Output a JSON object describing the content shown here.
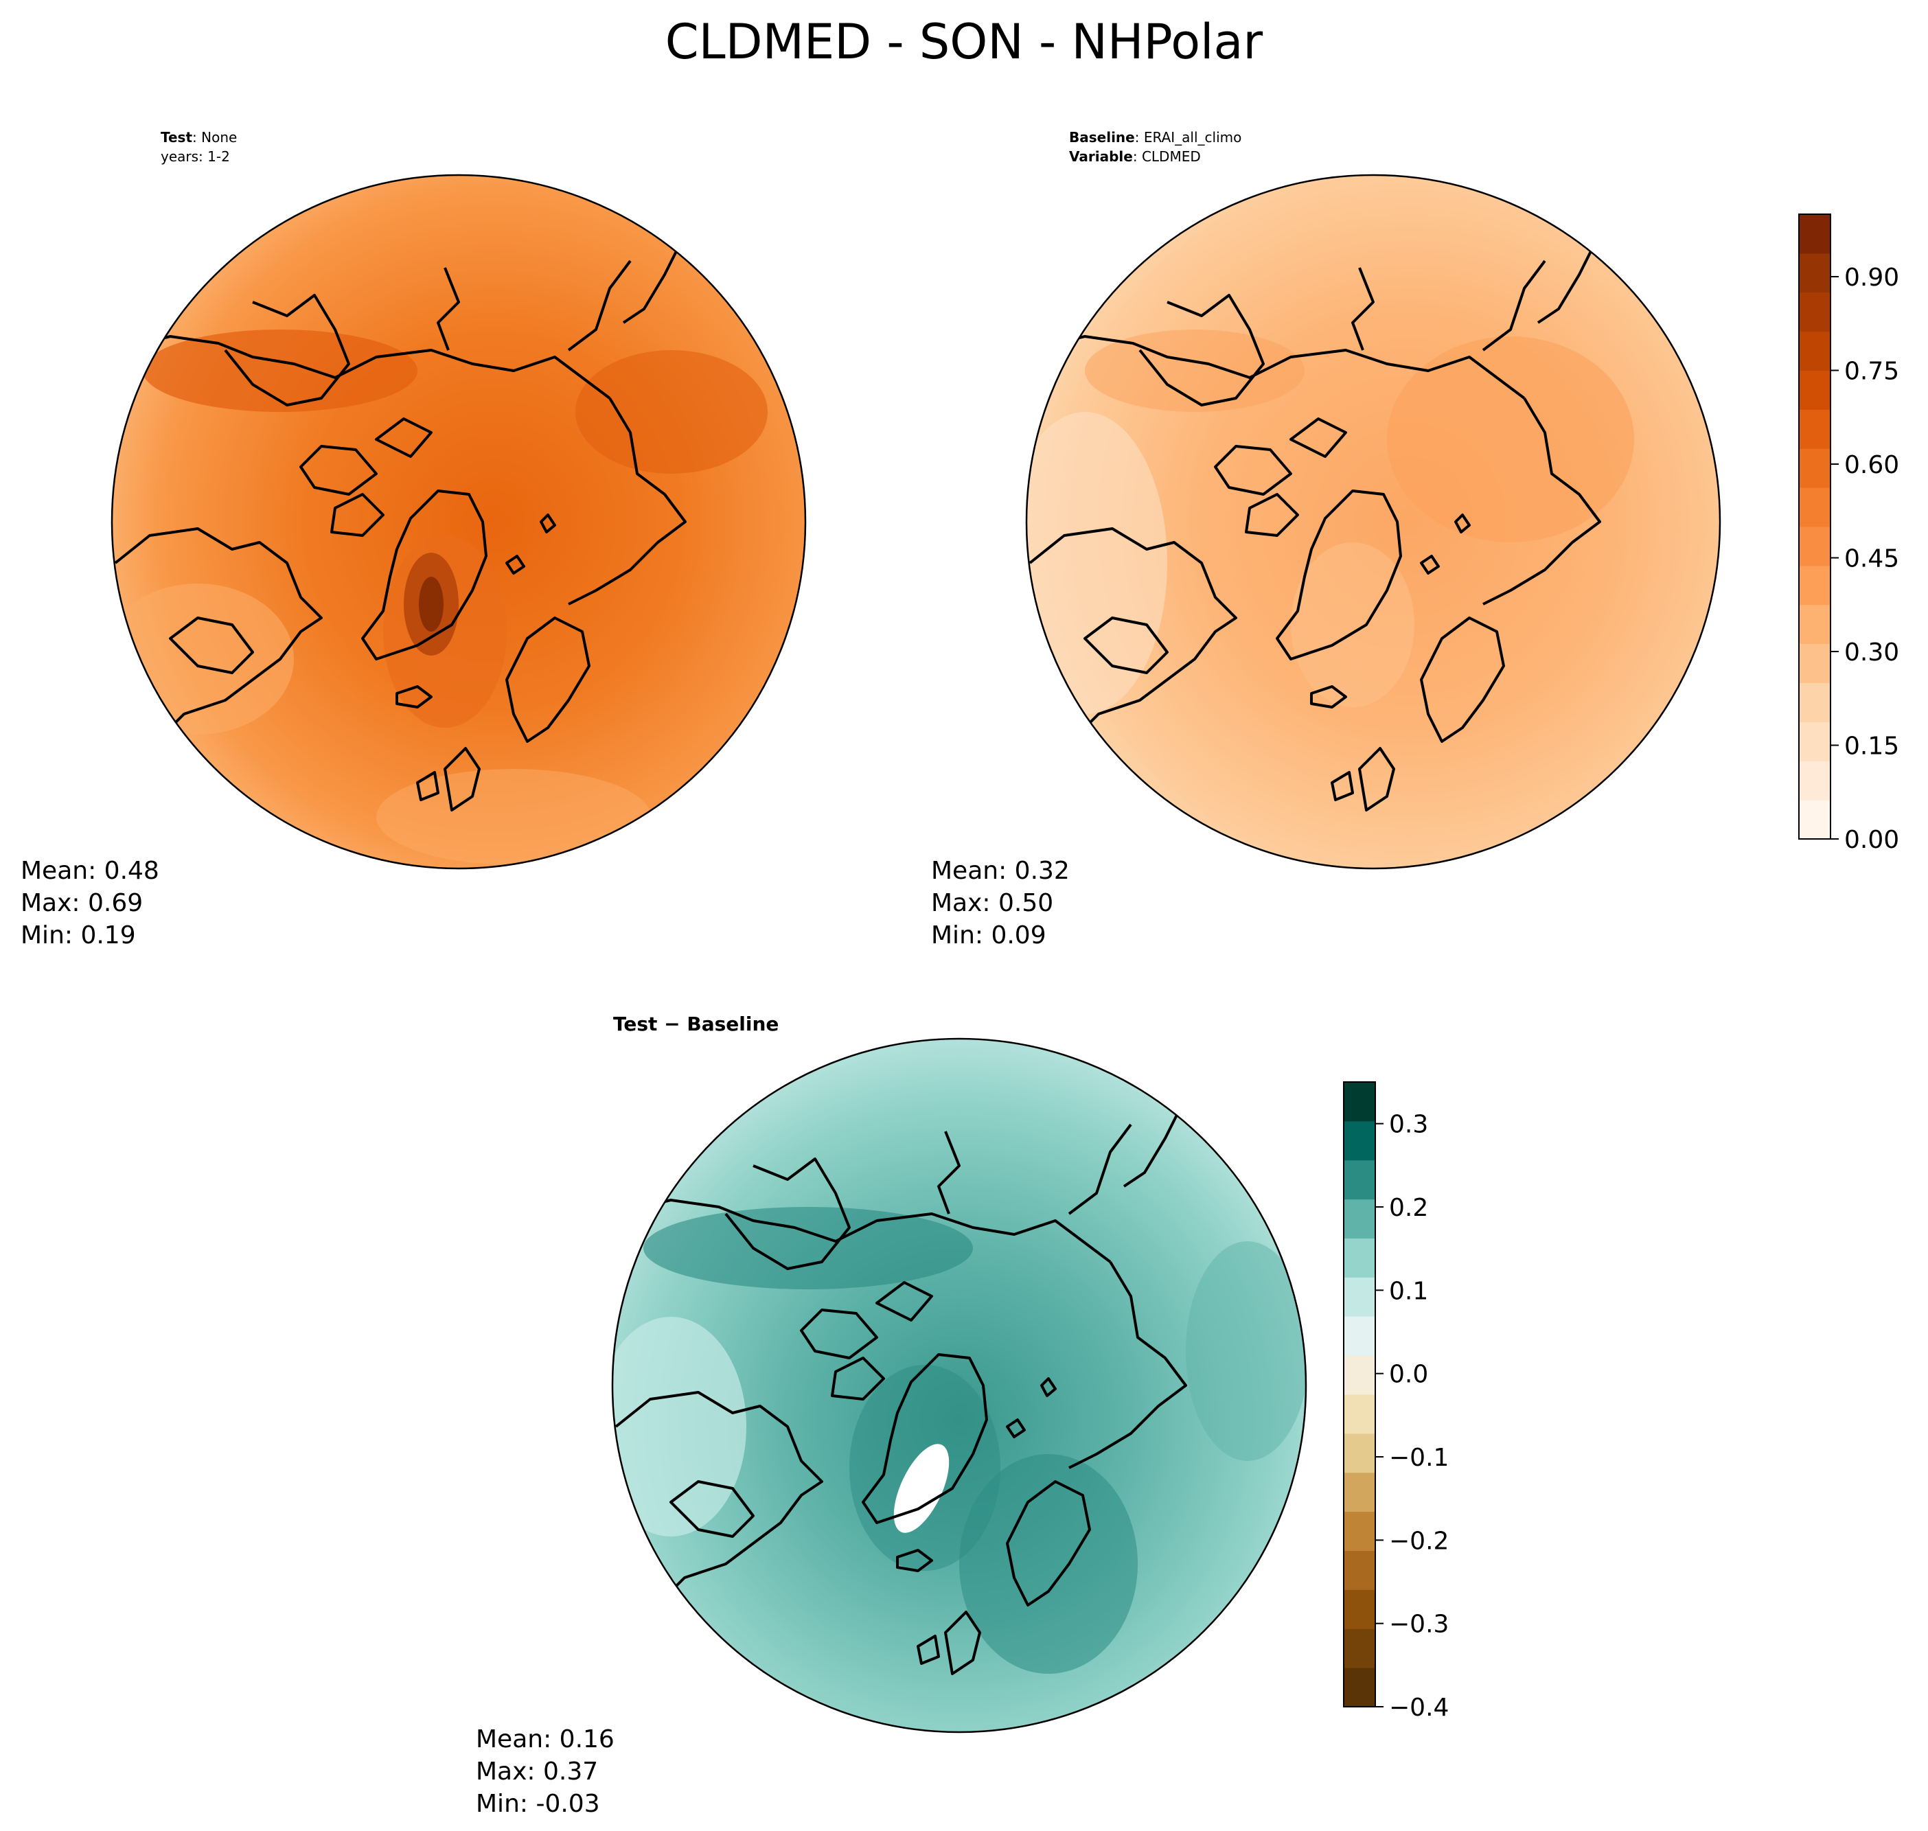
{
  "title": "CLDMED - SON - NHPolar",
  "colors": {
    "orange_scale": [
      "#fff5eb",
      "#feead6",
      "#fee0c1",
      "#fdd3a9",
      "#fdc28b",
      "#fdb271",
      "#fd9f56",
      "#f98e42",
      "#f4802f",
      "#ec6f1e",
      "#e25f10",
      "#d14f04",
      "#bf4502",
      "#aa3c03",
      "#973403",
      "#7f2704"
    ],
    "diff_scale": [
      "#5a3407",
      "#744309",
      "#8f520c",
      "#a96a20",
      "#bf8436",
      "#d2a65d",
      "#e4cb8d",
      "#f0e0b3",
      "#f5edd9",
      "#e4f2f1",
      "#c4e9e5",
      "#95d4cb",
      "#5fb3a9",
      "#2b8c83",
      "#01665e",
      "#003c30"
    ],
    "coastline": "#000000"
  },
  "panels": {
    "test": {
      "label_key": "Test",
      "label_value": "None",
      "label_line2": "years: 1-2",
      "stats": {
        "mean": "Mean:  0.48",
        "max": "Max:  0.69",
        "min": "Min:  0.19"
      }
    },
    "baseline": {
      "label_key1": "Baseline",
      "label_value1": "ERAI_all_climo",
      "label_key2": "Variable",
      "label_value2": "CLDMED",
      "stats": {
        "mean": "Mean:  0.32",
        "max": "Max:  0.50",
        "min": "Min:  0.09"
      }
    },
    "difference": {
      "label": "Test − Baseline",
      "stats": {
        "mean": "Mean:  0.16",
        "max": "Max:  0.37",
        "min": "Min: -0.03"
      }
    }
  },
  "chart_data": [
    {
      "type": "heatmap",
      "name": "Test",
      "projection": "north-polar-stereographic",
      "mean": 0.48,
      "max": 0.69,
      "min": 0.19
    },
    {
      "type": "heatmap",
      "name": "Baseline",
      "projection": "north-polar-stereographic",
      "mean": 0.32,
      "max": 0.5,
      "min": 0.09,
      "colorbar": {
        "range": [
          0.0,
          1.0
        ],
        "ticks": [
          0.0,
          0.15,
          0.3,
          0.45,
          0.6,
          0.75,
          0.9
        ],
        "tick_labels": [
          "0.00",
          "0.15",
          "0.30",
          "0.45",
          "0.60",
          "0.75",
          "0.90"
        ]
      }
    },
    {
      "type": "heatmap",
      "name": "Test − Baseline",
      "projection": "north-polar-stereographic",
      "mean": 0.16,
      "max": 0.37,
      "min": -0.03,
      "colorbar": {
        "range": [
          -0.4,
          0.35
        ],
        "ticks": [
          -0.4,
          -0.3,
          -0.2,
          -0.1,
          0.0,
          0.1,
          0.2,
          0.3
        ],
        "tick_labels": [
          "−0.4",
          "−0.3",
          "−0.2",
          "−0.1",
          "0.0",
          "0.1",
          "0.2",
          "0.3"
        ]
      }
    }
  ]
}
